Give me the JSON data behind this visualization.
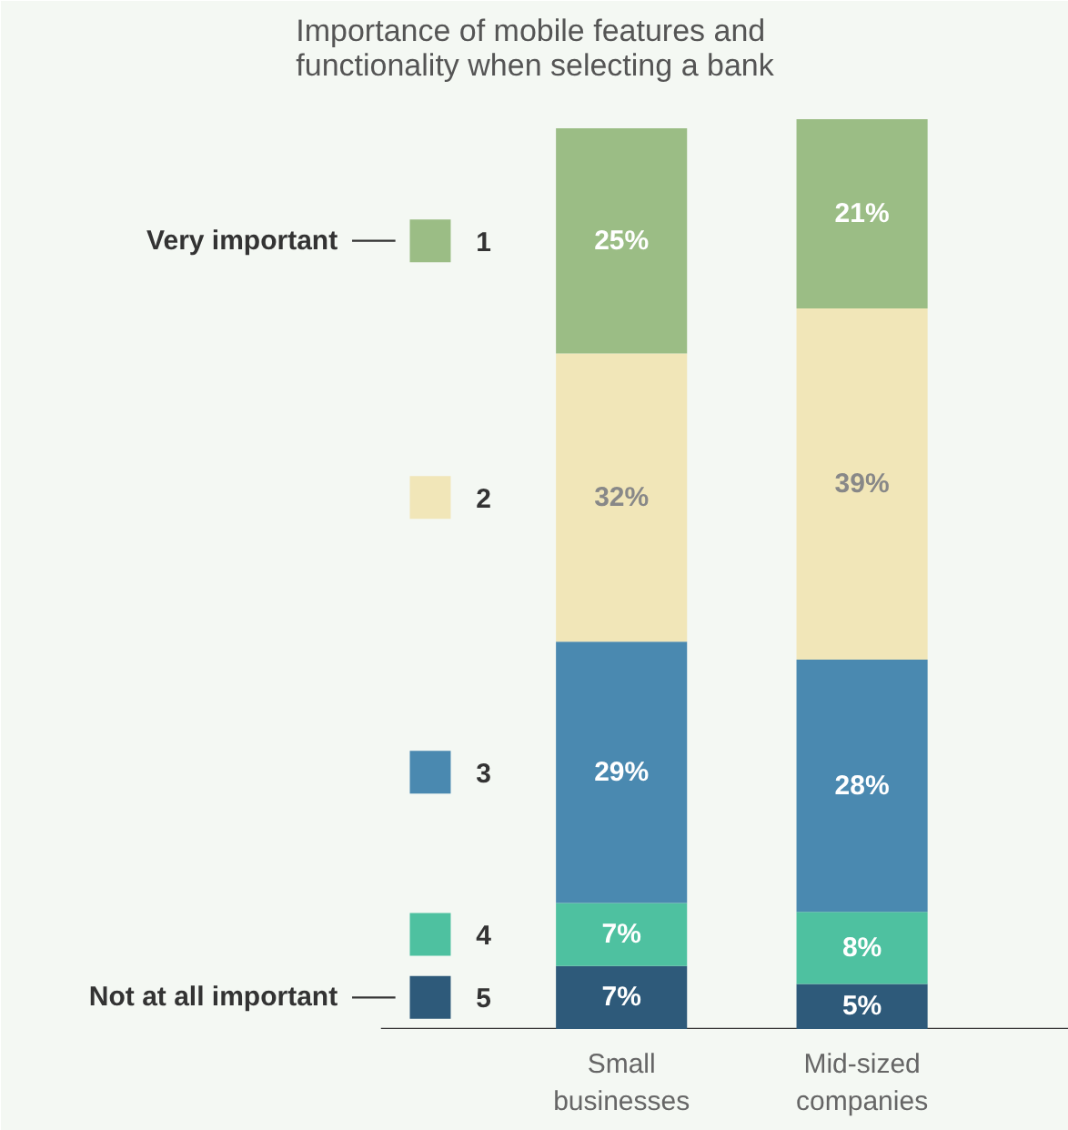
{
  "chart_data": {
    "type": "bar",
    "title": "Importance of mobile features and\nfunctionality when selecting a bank",
    "categories": [
      "Small\nbusinesses",
      "Mid-sized\ncompanies"
    ],
    "stacked": true,
    "legend": "left",
    "annotations": [
      "Very important",
      "Not at all important"
    ],
    "series": [
      {
        "name": "5",
        "color": "#2e5a7a",
        "values": [
          7,
          5
        ],
        "value_labels": [
          "7%",
          "5%"
        ]
      },
      {
        "name": "4",
        "color": "#4ec1a0",
        "values": [
          7,
          8
        ],
        "value_labels": [
          "7%",
          "8%"
        ]
      },
      {
        "name": "3",
        "color": "#4a89b0",
        "values": [
          29,
          28
        ],
        "value_labels": [
          "29%",
          "28%"
        ]
      },
      {
        "name": "2",
        "color": "#f1e6b8",
        "values": [
          32,
          39
        ],
        "value_labels": [
          "32%",
          "39%"
        ]
      },
      {
        "name": "1",
        "color": "#9bbd85",
        "values": [
          25,
          21
        ],
        "value_labels": [
          "25%",
          "21%"
        ]
      }
    ]
  }
}
